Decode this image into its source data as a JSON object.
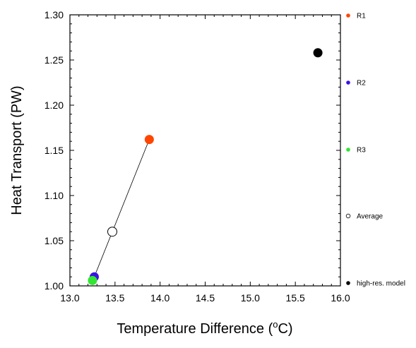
{
  "chart_data": {
    "type": "scatter",
    "xlabel": "Temperature Difference",
    "xlabel_unit_prefix": "(",
    "xlabel_unit_sup": "o",
    "xlabel_unit_suffix": "C)",
    "ylabel": "Heat Transport (PW)",
    "xlim": [
      13.0,
      16.0
    ],
    "ylim": [
      1.0,
      1.3
    ],
    "x_ticks": [
      13.0,
      13.5,
      14.0,
      14.5,
      15.0,
      15.5,
      16.0
    ],
    "y_ticks": [
      1.0,
      1.05,
      1.1,
      1.15,
      1.2,
      1.25,
      1.3
    ],
    "x_tick_labels": [
      "13.0",
      "13.5",
      "14.0",
      "14.5",
      "15.0",
      "15.5",
      "16.0"
    ],
    "y_tick_labels": [
      "1.00",
      "1.05",
      "1.10",
      "1.15",
      "1.20",
      "1.25",
      "1.30"
    ],
    "grid": false,
    "legend_position": "right",
    "line": {
      "from": "R2",
      "through": "Average",
      "to": "R1",
      "color": "#000000"
    },
    "series": [
      {
        "name": "R1",
        "x": 13.88,
        "y": 1.162,
        "color": "#ff4500",
        "filled": true
      },
      {
        "name": "R2",
        "x": 13.27,
        "y": 1.01,
        "color": "#3c10e6",
        "filled": true
      },
      {
        "name": "R3",
        "x": 13.25,
        "y": 1.006,
        "color": "#32e632",
        "filled": true
      },
      {
        "name": "Average",
        "x": 13.47,
        "y": 1.06,
        "color": "#000000",
        "filled": false
      },
      {
        "name": "high-res. model",
        "x": 15.75,
        "y": 1.258,
        "color": "#000000",
        "filled": true
      }
    ]
  }
}
